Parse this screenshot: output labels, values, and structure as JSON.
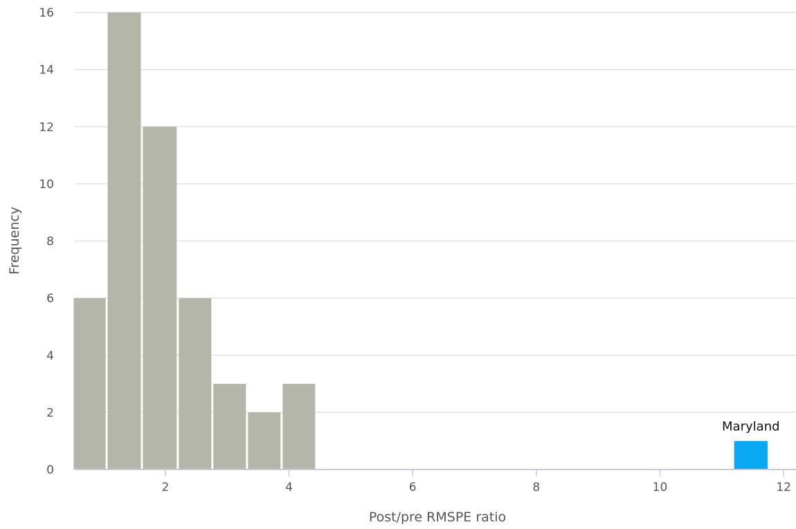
{
  "chart_data": {
    "type": "bar",
    "subtype": "histogram",
    "title": "",
    "xlabel": "Post/pre RMSPE ratio",
    "ylabel": "Frequency",
    "xlim": [
      0.4,
      12.2
    ],
    "ylim": [
      0,
      16
    ],
    "x_ticks": [
      2,
      4,
      6,
      8,
      10,
      12
    ],
    "y_ticks": [
      0,
      2,
      4,
      6,
      8,
      10,
      12,
      14,
      16
    ],
    "grid": "horizontal",
    "legend": "none",
    "bins": [
      {
        "x_start": 0.5,
        "x_end": 1.05,
        "value": 6
      },
      {
        "x_start": 1.05,
        "x_end": 1.62,
        "value": 16
      },
      {
        "x_start": 1.62,
        "x_end": 2.2,
        "value": 12
      },
      {
        "x_start": 2.2,
        "x_end": 2.76,
        "value": 6
      },
      {
        "x_start": 2.76,
        "x_end": 3.32,
        "value": 3
      },
      {
        "x_start": 3.32,
        "x_end": 3.88,
        "value": 2
      },
      {
        "x_start": 3.88,
        "x_end": 4.44,
        "value": 3
      }
    ],
    "highlight": {
      "x_start": 11.2,
      "x_end": 11.74,
      "value": 1,
      "label": "Maryland"
    },
    "colors": {
      "bar": "#b3b6a9",
      "highlight": "#0aa7f2",
      "grid": "#e3e3e3",
      "axis": "#c5cbd8",
      "text": "#555555"
    }
  }
}
